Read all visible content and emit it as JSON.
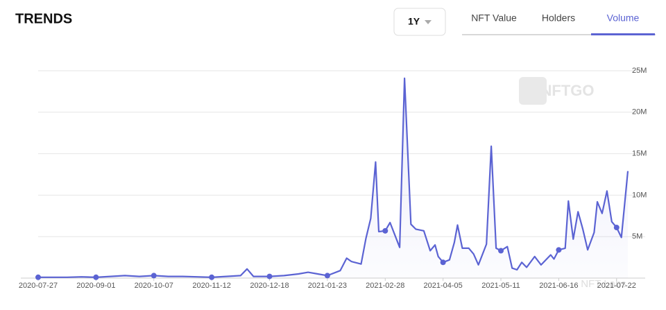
{
  "header": {
    "title": "TRENDS",
    "range": "1Y",
    "tabs": [
      "NFT Value",
      "Holders",
      "Volume"
    ],
    "active_tab": 2
  },
  "watermark": "NFTGO",
  "corner_watermark": "NFT Labs",
  "chart_data": {
    "type": "line",
    "color": "#5b63d3",
    "x": [
      "2020-07-27",
      "2020-08-05",
      "2020-08-14",
      "2020-08-23",
      "2020-09-01",
      "2020-09-10",
      "2020-09-19",
      "2020-09-28",
      "2020-10-07",
      "2020-10-16",
      "2020-10-25",
      "2020-11-03",
      "2020-11-12",
      "2020-11-21",
      "2020-11-30",
      "2020-12-04",
      "2020-12-08",
      "2020-12-18",
      "2020-12-27",
      "2021-01-05",
      "2021-01-11",
      "2021-01-17",
      "2021-01-23",
      "2021-01-31",
      "2021-02-04",
      "2021-02-07",
      "2021-02-13",
      "2021-02-16",
      "2021-02-19",
      "2021-02-22",
      "2021-02-24",
      "2021-02-28",
      "2021-03-03",
      "2021-03-09",
      "2021-03-12",
      "2021-03-16",
      "2021-03-19",
      "2021-03-24",
      "2021-03-28",
      "2021-03-31",
      "2021-04-02",
      "2021-04-05",
      "2021-04-09",
      "2021-04-12",
      "2021-04-14",
      "2021-04-17",
      "2021-04-21",
      "2021-04-24",
      "2021-04-27",
      "2021-05-02",
      "2021-05-05",
      "2021-05-08",
      "2021-05-11",
      "2021-05-15",
      "2021-05-18",
      "2021-05-21",
      "2021-05-24",
      "2021-05-27",
      "2021-06-01",
      "2021-06-05",
      "2021-06-11",
      "2021-06-13",
      "2021-06-16",
      "2021-06-20",
      "2021-06-22",
      "2021-06-25",
      "2021-06-28",
      "2021-07-01",
      "2021-07-04",
      "2021-07-08",
      "2021-07-10",
      "2021-07-13",
      "2021-07-16",
      "2021-07-19",
      "2021-07-22",
      "2021-07-25",
      "2021-07-29"
    ],
    "values": [
      0.1,
      0.1,
      0.1,
      0.15,
      0.1,
      0.2,
      0.3,
      0.2,
      0.3,
      0.2,
      0.2,
      0.15,
      0.1,
      0.2,
      0.3,
      1.1,
      0.2,
      0.2,
      0.3,
      0.5,
      0.7,
      0.5,
      0.3,
      0.9,
      2.4,
      2.0,
      1.7,
      4.8,
      7.2,
      14.0,
      5.6,
      5.7,
      6.7,
      3.7,
      24.1,
      6.5,
      5.9,
      5.7,
      3.3,
      4.0,
      2.6,
      1.9,
      2.2,
      4.3,
      6.4,
      3.6,
      3.6,
      2.9,
      1.6,
      4.1,
      15.9,
      3.6,
      3.3,
      3.8,
      1.2,
      1.0,
      1.9,
      1.3,
      2.6,
      1.6,
      2.8,
      2.3,
      3.4,
      3.6,
      9.3,
      4.7,
      8.0,
      5.9,
      3.4,
      5.5,
      9.2,
      7.8,
      10.5,
      6.8,
      6.1,
      4.9,
      12.9
    ],
    "xlim": [
      "2020-07-27",
      "2021-07-29"
    ],
    "xticks": [
      "2020-07-27",
      "2020-09-01",
      "2020-10-07",
      "2020-11-12",
      "2020-12-18",
      "2021-01-23",
      "2021-02-28",
      "2021-04-05",
      "2021-05-11",
      "2021-06-16",
      "2021-07-22"
    ],
    "ylim": [
      0,
      25
    ],
    "yticks": [
      {
        "value": 5,
        "label": "5M"
      },
      {
        "value": 10,
        "label": "10M"
      },
      {
        "value": 15,
        "label": "15M"
      },
      {
        "value": 20,
        "label": "20M"
      },
      {
        "value": 25,
        "label": "25M"
      }
    ],
    "grid": true
  }
}
